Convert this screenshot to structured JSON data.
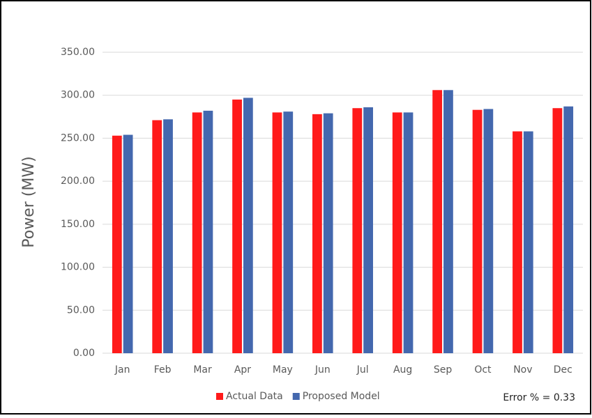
{
  "chart_data": {
    "type": "bar",
    "y_label": "Power (MW)",
    "annotation": "Error % = 0.33",
    "categories": [
      "Jan",
      "Feb",
      "Mar",
      "Apr",
      "May",
      "Jun",
      "Jul",
      "Aug",
      "Sep",
      "Oct",
      "Nov",
      "Dec"
    ],
    "series": [
      {
        "name": "Actual Data",
        "color": "#ff1a1a",
        "values": [
          253,
          271,
          280,
          295,
          280,
          278,
          285,
          280,
          306,
          283,
          258,
          285
        ]
      },
      {
        "name": "Proposed Model",
        "color": "#4468ae",
        "values": [
          254,
          272,
          282,
          297,
          281,
          279,
          286,
          280,
          306,
          284,
          258,
          287
        ]
      }
    ],
    "ylim": [
      0,
      350
    ],
    "yticks": [
      {
        "value": 0,
        "label": "0.00"
      },
      {
        "value": 50,
        "label": "50.00"
      },
      {
        "value": 100,
        "label": "100.00"
      },
      {
        "value": 150,
        "label": "150.00"
      },
      {
        "value": 200,
        "label": "200.00"
      },
      {
        "value": 250,
        "label": "250.00"
      },
      {
        "value": 300,
        "label": "300.00"
      },
      {
        "value": 350,
        "label": "350.00"
      }
    ],
    "grid": true
  }
}
